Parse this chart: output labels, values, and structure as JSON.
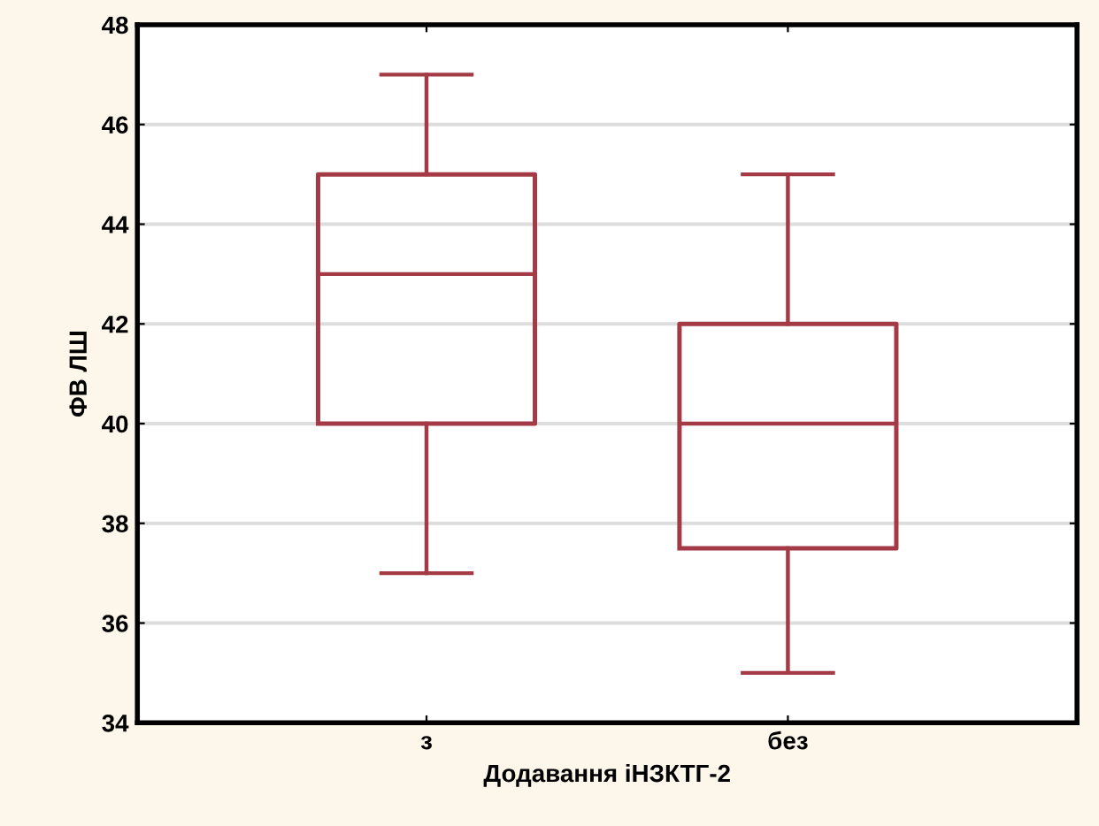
{
  "chart_data": {
    "type": "box",
    "xlabel": "Додавання іНЗКТГ-2",
    "ylabel": "ФВ ЛШ",
    "categories": [
      "з",
      "без"
    ],
    "series": [
      {
        "color": "#a33a45",
        "boxes": [
          {
            "low": 37,
            "q1": 40,
            "median": 43,
            "q3": 45,
            "high": 47
          },
          {
            "low": 35,
            "q1": 37.5,
            "median": 40,
            "q3": 42,
            "high": 45
          }
        ]
      }
    ],
    "ylim": [
      34,
      48
    ],
    "yticks": [
      34,
      36,
      38,
      40,
      42,
      44,
      46,
      48
    ],
    "grid": "y"
  }
}
